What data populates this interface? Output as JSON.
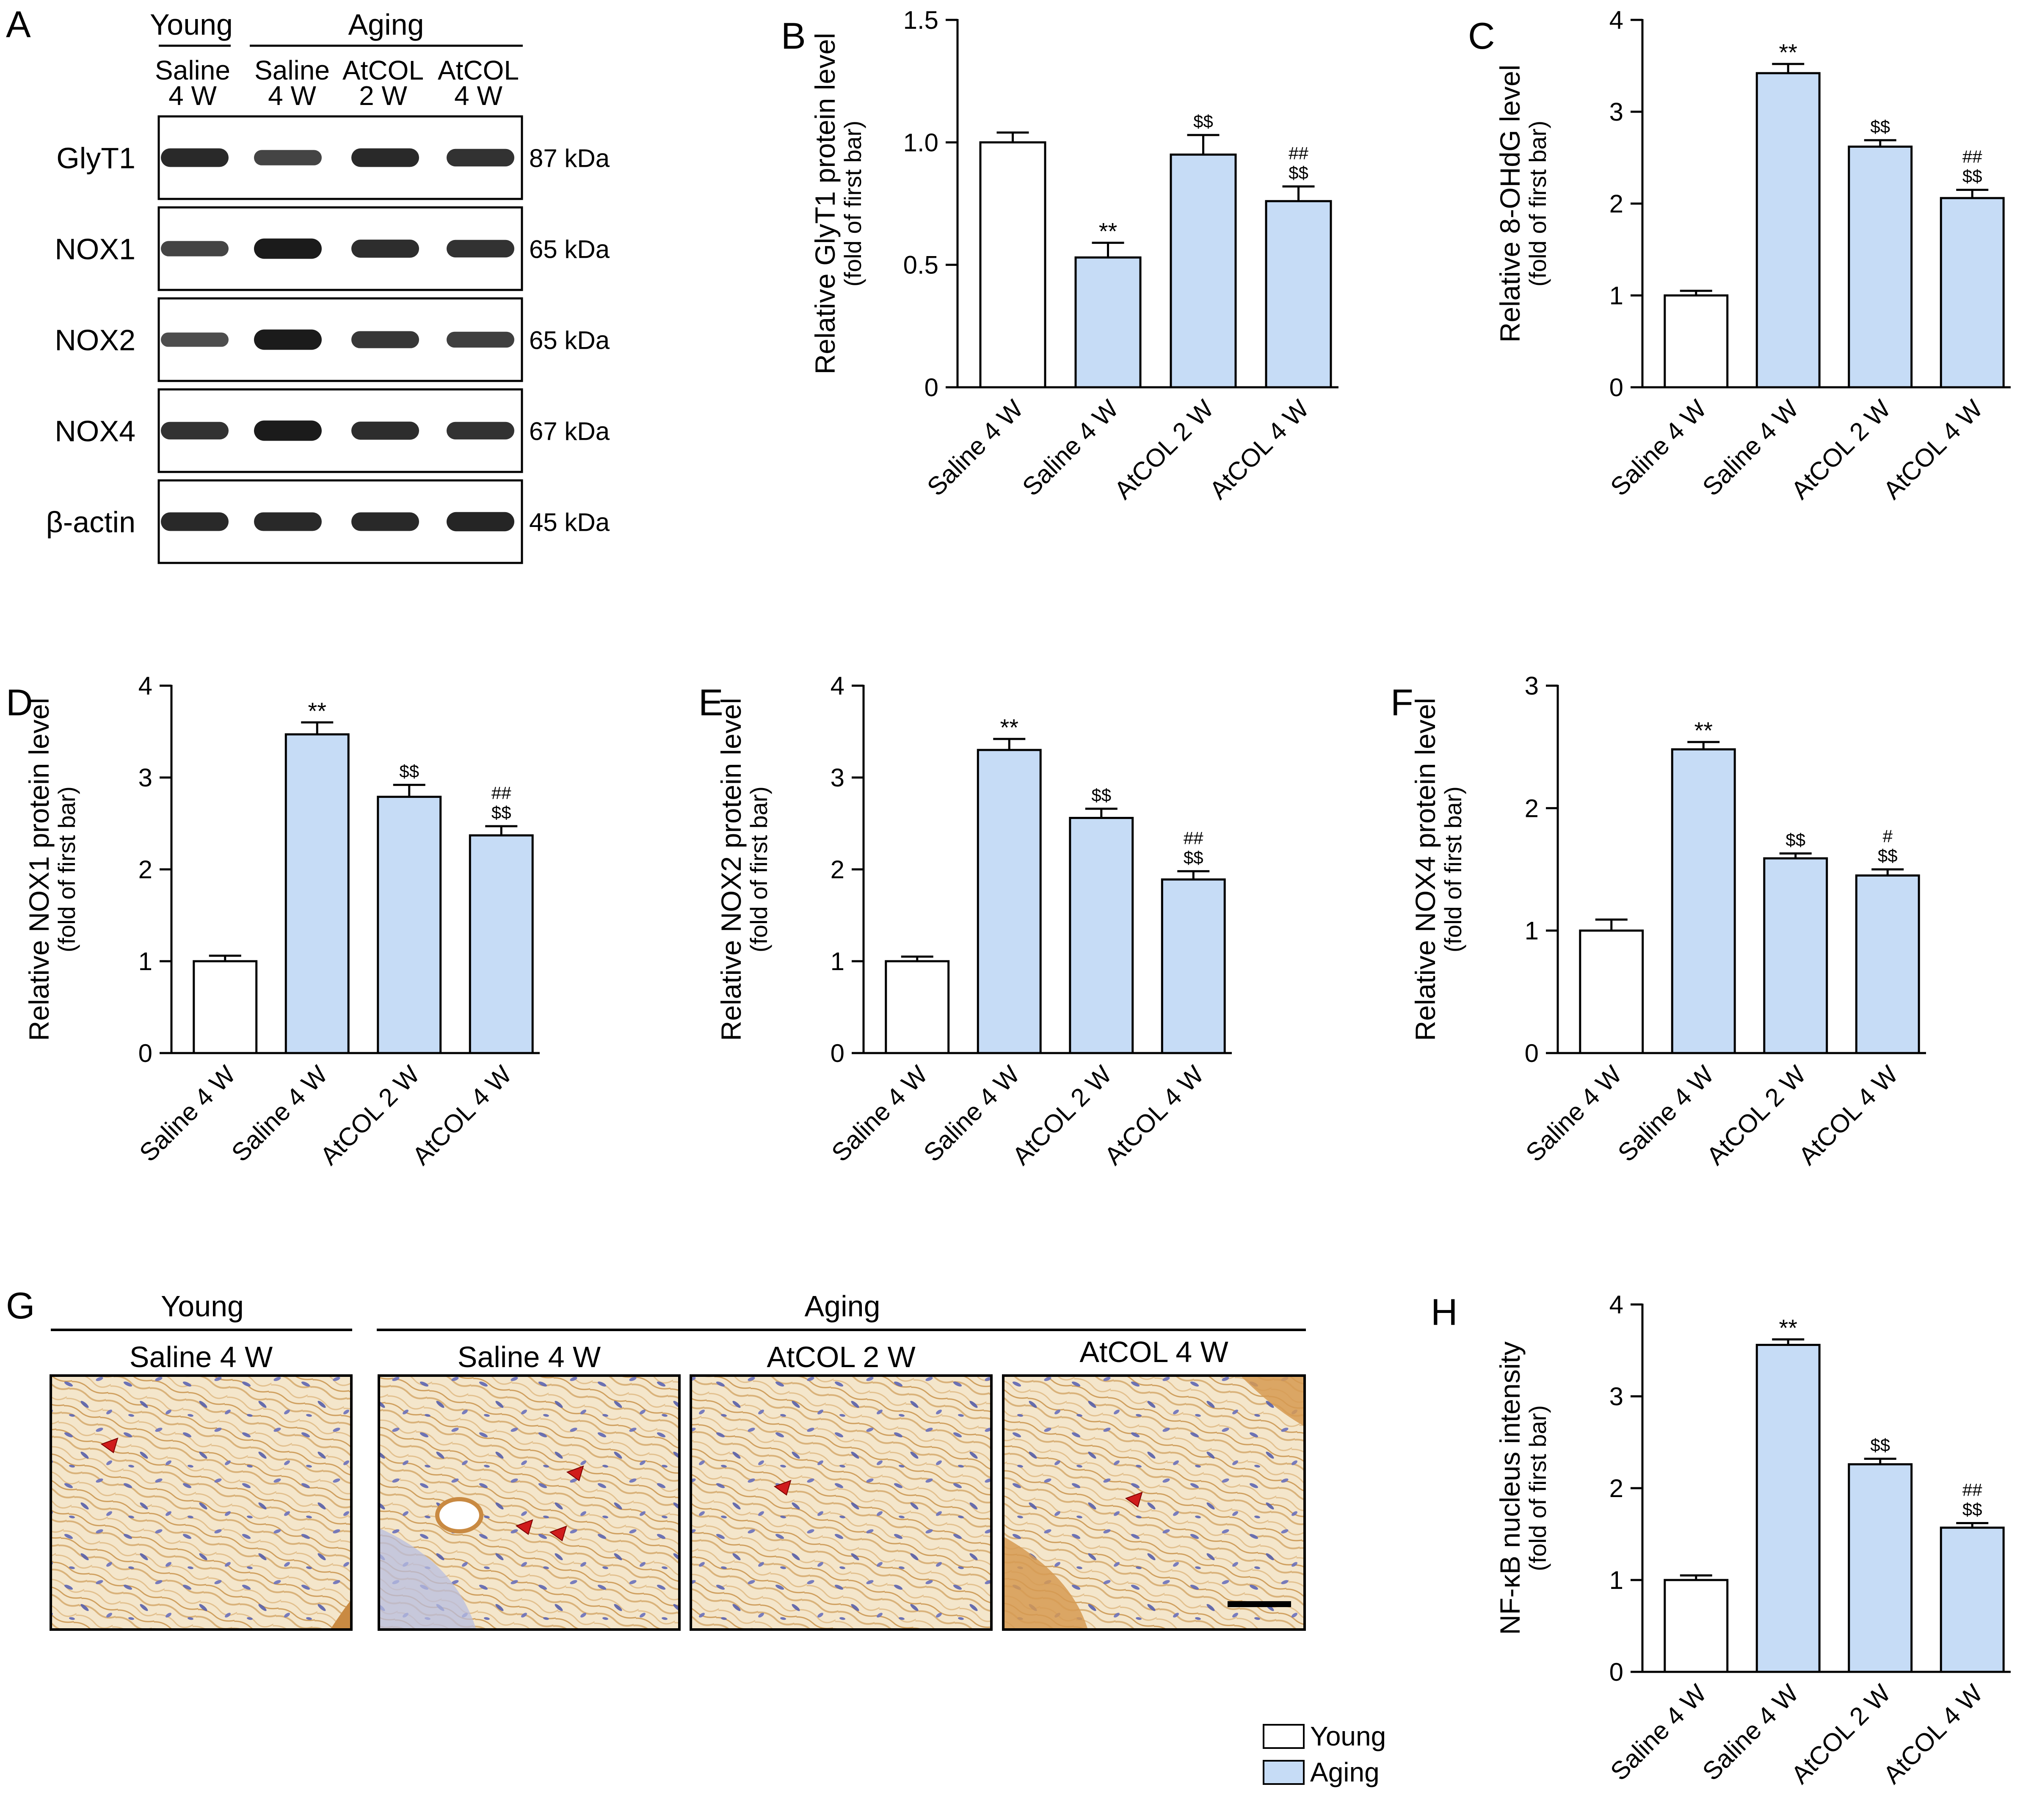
{
  "colors": {
    "young_fill": "#ffffff",
    "aging_fill": "#c6dcf6",
    "bar_stroke": "#000000",
    "arrowhead": "#d01c1c",
    "tissue_base": "#f3e3c6",
    "tissue_dark": "#c98a42",
    "nuclei": "#5d65b3"
  },
  "panel_a": {
    "letter": "A",
    "young_label": "Young",
    "aging_label": "Aging",
    "lane_headers": [
      {
        "line1": "Saline",
        "line2": "4 W"
      },
      {
        "line1": "Saline",
        "line2": "4 W"
      },
      {
        "line1": "AtCOL",
        "line2": "2 W"
      },
      {
        "line1": "AtCOL",
        "line2": "4 W"
      }
    ],
    "blots": [
      {
        "name": "GlyT1",
        "kda": "87 kDa",
        "intensity": [
          0.85,
          0.55,
          0.85,
          0.75
        ]
      },
      {
        "name": "NOX1",
        "kda": "65 kDa",
        "intensity": [
          0.55,
          1.0,
          0.8,
          0.75
        ]
      },
      {
        "name": "NOX2",
        "kda": "65 kDa",
        "intensity": [
          0.45,
          1.0,
          0.7,
          0.6
        ]
      },
      {
        "name": "NOX4",
        "kda": "67 kDa",
        "intensity": [
          0.75,
          1.0,
          0.8,
          0.75
        ]
      },
      {
        "name": "β-actin",
        "kda": "45 kDa",
        "intensity": [
          0.85,
          0.85,
          0.85,
          0.9
        ]
      }
    ]
  },
  "chart_data": [
    {
      "id": "B",
      "type": "bar",
      "categories": [
        "Saline 4 W",
        "Saline 4 W",
        "AtCOL 2 W",
        "AtCOL 4 W"
      ],
      "groups": [
        "Young",
        "Aging",
        "Aging",
        "Aging"
      ],
      "values": [
        1.0,
        0.53,
        0.95,
        0.76
      ],
      "errors": [
        0.04,
        0.06,
        0.08,
        0.06
      ],
      "annotations": [
        [],
        [
          "**"
        ],
        [
          "$$"
        ],
        [
          "##",
          "$$"
        ]
      ],
      "ylabel": "Relative GlyT1 protein level",
      "ylabel_sub": "(fold of first bar)",
      "ylim": [
        0,
        1.5
      ],
      "yticks": [
        0,
        0.5,
        1.0,
        1.5
      ],
      "ytick_labels": [
        "0",
        "0.5",
        "1.0",
        "1.5"
      ]
    },
    {
      "id": "C",
      "type": "bar",
      "categories": [
        "Saline 4 W",
        "Saline 4 W",
        "AtCOL 2 W",
        "AtCOL 4 W"
      ],
      "groups": [
        "Young",
        "Aging",
        "Aging",
        "Aging"
      ],
      "values": [
        1.0,
        3.42,
        2.62,
        2.06
      ],
      "errors": [
        0.05,
        0.1,
        0.07,
        0.09
      ],
      "annotations": [
        [],
        [
          "**"
        ],
        [
          "$$"
        ],
        [
          "##",
          "$$"
        ]
      ],
      "ylabel": "Relative 8-OHdG level",
      "ylabel_sub": "(fold of first bar)",
      "ylim": [
        0,
        4
      ],
      "yticks": [
        0,
        1,
        2,
        3,
        4
      ],
      "ytick_labels": [
        "0",
        "1",
        "2",
        "3",
        "4"
      ]
    },
    {
      "id": "D",
      "type": "bar",
      "categories": [
        "Saline 4 W",
        "Saline 4 W",
        "AtCOL 2 W",
        "AtCOL 4 W"
      ],
      "groups": [
        "Young",
        "Aging",
        "Aging",
        "Aging"
      ],
      "values": [
        1.0,
        3.47,
        2.79,
        2.37
      ],
      "errors": [
        0.06,
        0.13,
        0.13,
        0.1
      ],
      "annotations": [
        [],
        [
          "**"
        ],
        [
          "$$"
        ],
        [
          "##",
          "$$"
        ]
      ],
      "ylabel": "Relative NOX1 protein level",
      "ylabel_sub": "(fold of first bar)",
      "ylim": [
        0,
        4
      ],
      "yticks": [
        0,
        1,
        2,
        3,
        4
      ],
      "ytick_labels": [
        "0",
        "1",
        "2",
        "3",
        "4"
      ]
    },
    {
      "id": "E",
      "type": "bar",
      "categories": [
        "Saline 4 W",
        "Saline 4 W",
        "AtCOL 2 W",
        "AtCOL 4 W"
      ],
      "groups": [
        "Young",
        "Aging",
        "Aging",
        "Aging"
      ],
      "values": [
        1.0,
        3.3,
        2.56,
        1.89
      ],
      "errors": [
        0.05,
        0.12,
        0.1,
        0.09
      ],
      "annotations": [
        [],
        [
          "**"
        ],
        [
          "$$"
        ],
        [
          "##",
          "$$"
        ]
      ],
      "ylabel": "Relative NOX2 protein level",
      "ylabel_sub": "(fold of first bar)",
      "ylim": [
        0,
        4
      ],
      "yticks": [
        0,
        1,
        2,
        3,
        4
      ],
      "ytick_labels": [
        "0",
        "1",
        "2",
        "3",
        "4"
      ]
    },
    {
      "id": "F",
      "type": "bar",
      "categories": [
        "Saline 4 W",
        "Saline 4 W",
        "AtCOL 2 W",
        "AtCOL 4 W"
      ],
      "groups": [
        "Young",
        "Aging",
        "Aging",
        "Aging"
      ],
      "values": [
        1.0,
        2.48,
        1.59,
        1.45
      ],
      "errors": [
        0.09,
        0.06,
        0.04,
        0.05
      ],
      "annotations": [
        [],
        [
          "**"
        ],
        [
          "$$"
        ],
        [
          "#",
          "$$"
        ]
      ],
      "ylabel": "Relative NOX4 protein level",
      "ylabel_sub": "(fold of first bar)",
      "ylim": [
        0,
        3
      ],
      "yticks": [
        0,
        1,
        2,
        3
      ],
      "ytick_labels": [
        "0",
        "1",
        "2",
        "3"
      ]
    },
    {
      "id": "H",
      "type": "bar",
      "categories": [
        "Saline 4 W",
        "Saline 4 W",
        "AtCOL 2 W",
        "AtCOL 4 W"
      ],
      "groups": [
        "Young",
        "Aging",
        "Aging",
        "Aging"
      ],
      "values": [
        1.0,
        3.56,
        2.26,
        1.57
      ],
      "errors": [
        0.05,
        0.06,
        0.06,
        0.05
      ],
      "annotations": [
        [],
        [
          "**"
        ],
        [
          "$$"
        ],
        [
          "##",
          "$$"
        ]
      ],
      "ylabel": "NF-κB nucleus intensity",
      "ylabel_sub": "(fold of first bar)",
      "ylim": [
        0,
        4
      ],
      "yticks": [
        0,
        1,
        2,
        3,
        4
      ],
      "ytick_labels": [
        "0",
        "1",
        "2",
        "3",
        "4"
      ]
    }
  ],
  "panel_g": {
    "letter": "G",
    "young_label": "Young",
    "aging_label": "Aging",
    "panels": [
      "Saline 4 W",
      "Saline 4 W",
      "AtCOL 2 W",
      "AtCOL 4 W"
    ]
  },
  "legend": {
    "young": "Young",
    "aging": "Aging"
  }
}
